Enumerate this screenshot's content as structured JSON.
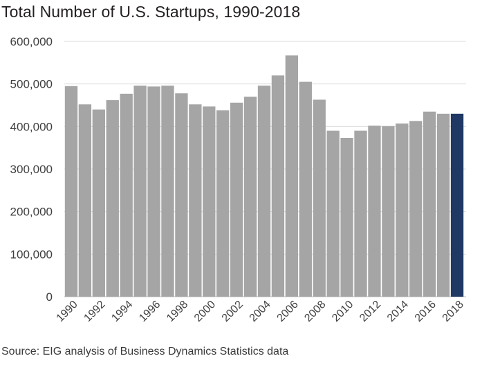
{
  "title": "Total Number of U.S. Startups, 1990-2018",
  "source": "Source: EIG analysis of Business Dynamics Statistics data",
  "colors": {
    "bar": "#a6a5a5",
    "highlight": "#1f3864",
    "grid": "#dcdcdc"
  },
  "chart_data": {
    "type": "bar",
    "title": "Total Number of U.S. Startups, 1990-2018",
    "xlabel": "",
    "ylabel": "",
    "ylim": [
      0,
      600000
    ],
    "yticks": [
      0,
      100000,
      200000,
      300000,
      400000,
      500000,
      600000
    ],
    "ytick_labels": [
      "0",
      "100,000",
      "200,000",
      "300,000",
      "400,000",
      "500,000",
      "600,000"
    ],
    "xtick_labels": [
      "1990",
      "1992",
      "1994",
      "1996",
      "1998",
      "2000",
      "2002",
      "2004",
      "2006",
      "2008",
      "2010",
      "2012",
      "2014",
      "2016",
      "2018"
    ],
    "grid": true,
    "categories": [
      "1990",
      "1991",
      "1992",
      "1993",
      "1994",
      "1995",
      "1996",
      "1997",
      "1998",
      "1999",
      "2000",
      "2001",
      "2002",
      "2003",
      "2004",
      "2005",
      "2006",
      "2007",
      "2008",
      "2009",
      "2010",
      "2011",
      "2012",
      "2013",
      "2014",
      "2015",
      "2016",
      "2017",
      "2018"
    ],
    "values": [
      495000,
      452000,
      440000,
      462000,
      477000,
      496000,
      494000,
      496000,
      478000,
      452000,
      447000,
      438000,
      456000,
      470000,
      496000,
      520000,
      567000,
      505000,
      463000,
      390000,
      373000,
      390000,
      402000,
      401000,
      407000,
      413000,
      435000,
      430000,
      430000
    ],
    "highlight_category": "2018"
  }
}
